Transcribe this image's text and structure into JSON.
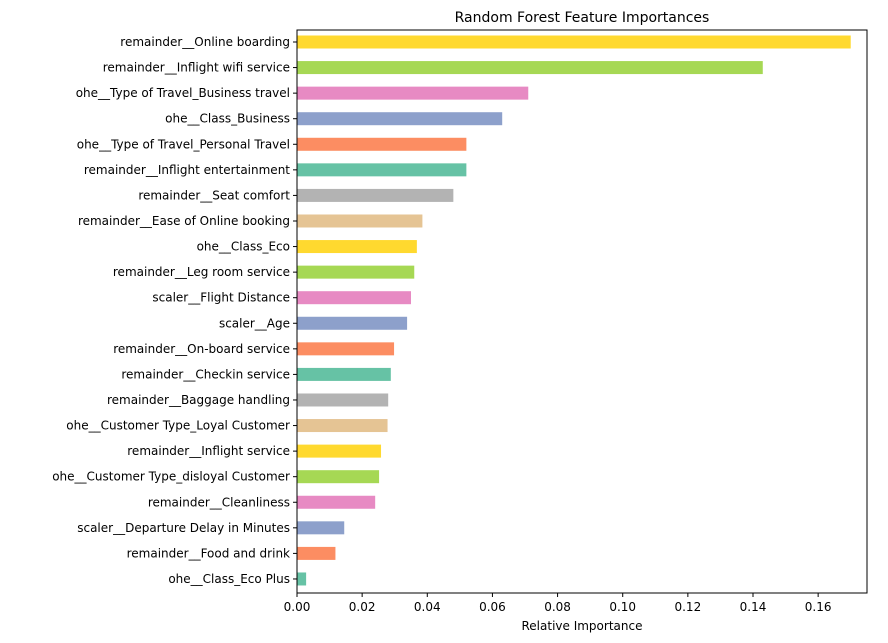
{
  "chart_data": {
    "type": "bar",
    "orientation": "horizontal",
    "title": "Random Forest Feature Importances",
    "xlabel": "Relative Importance",
    "ylabel": "",
    "xlim": [
      0.0,
      0.175
    ],
    "xticks": [
      "0.00",
      "0.02",
      "0.04",
      "0.06",
      "0.08",
      "0.10",
      "0.12",
      "0.14",
      "0.16"
    ],
    "grid": false,
    "legend": "none",
    "palette": [
      "#66c2a5",
      "#fc8d62",
      "#8da0cb",
      "#e78ac3",
      "#a6d854",
      "#ffd92f",
      "#e5c494",
      "#b3b3b3"
    ],
    "bars": [
      {
        "label": "remainder__Online boarding",
        "value": 0.17,
        "color": "#ffd92f"
      },
      {
        "label": "remainder__Inflight wifi service",
        "value": 0.143,
        "color": "#a6d854"
      },
      {
        "label": "ohe__Type of Travel_Business travel",
        "value": 0.071,
        "color": "#e78ac3"
      },
      {
        "label": "ohe__Class_Business",
        "value": 0.063,
        "color": "#8da0cb"
      },
      {
        "label": "ohe__Type of Travel_Personal Travel",
        "value": 0.052,
        "color": "#fc8d62"
      },
      {
        "label": "remainder__Inflight entertainment",
        "value": 0.052,
        "color": "#66c2a5"
      },
      {
        "label": "remainder__Seat comfort",
        "value": 0.048,
        "color": "#b3b3b3"
      },
      {
        "label": "remainder__Ease of Online booking",
        "value": 0.0385,
        "color": "#e5c494"
      },
      {
        "label": "ohe__Class_Eco",
        "value": 0.0368,
        "color": "#ffd92f"
      },
      {
        "label": "remainder__Leg room service",
        "value": 0.036,
        "color": "#a6d854"
      },
      {
        "label": "scaler__Flight Distance",
        "value": 0.035,
        "color": "#e78ac3"
      },
      {
        "label": "scaler__Age",
        "value": 0.0338,
        "color": "#8da0cb"
      },
      {
        "label": "remainder__On-board service",
        "value": 0.0298,
        "color": "#fc8d62"
      },
      {
        "label": "remainder__Checkin service",
        "value": 0.0288,
        "color": "#66c2a5"
      },
      {
        "label": "remainder__Baggage handling",
        "value": 0.028,
        "color": "#b3b3b3"
      },
      {
        "label": "ohe__Customer Type_Loyal Customer",
        "value": 0.0278,
        "color": "#e5c494"
      },
      {
        "label": "remainder__Inflight service",
        "value": 0.0258,
        "color": "#ffd92f"
      },
      {
        "label": "ohe__Customer Type_disloyal Customer",
        "value": 0.0252,
        "color": "#a6d854"
      },
      {
        "label": "remainder__Cleanliness",
        "value": 0.024,
        "color": "#e78ac3"
      },
      {
        "label": "scaler__Departure Delay in Minutes",
        "value": 0.0145,
        "color": "#8da0cb"
      },
      {
        "label": "remainder__Food and drink",
        "value": 0.0118,
        "color": "#fc8d62"
      },
      {
        "label": "ohe__Class_Eco Plus",
        "value": 0.0028,
        "color": "#66c2a5"
      }
    ]
  }
}
